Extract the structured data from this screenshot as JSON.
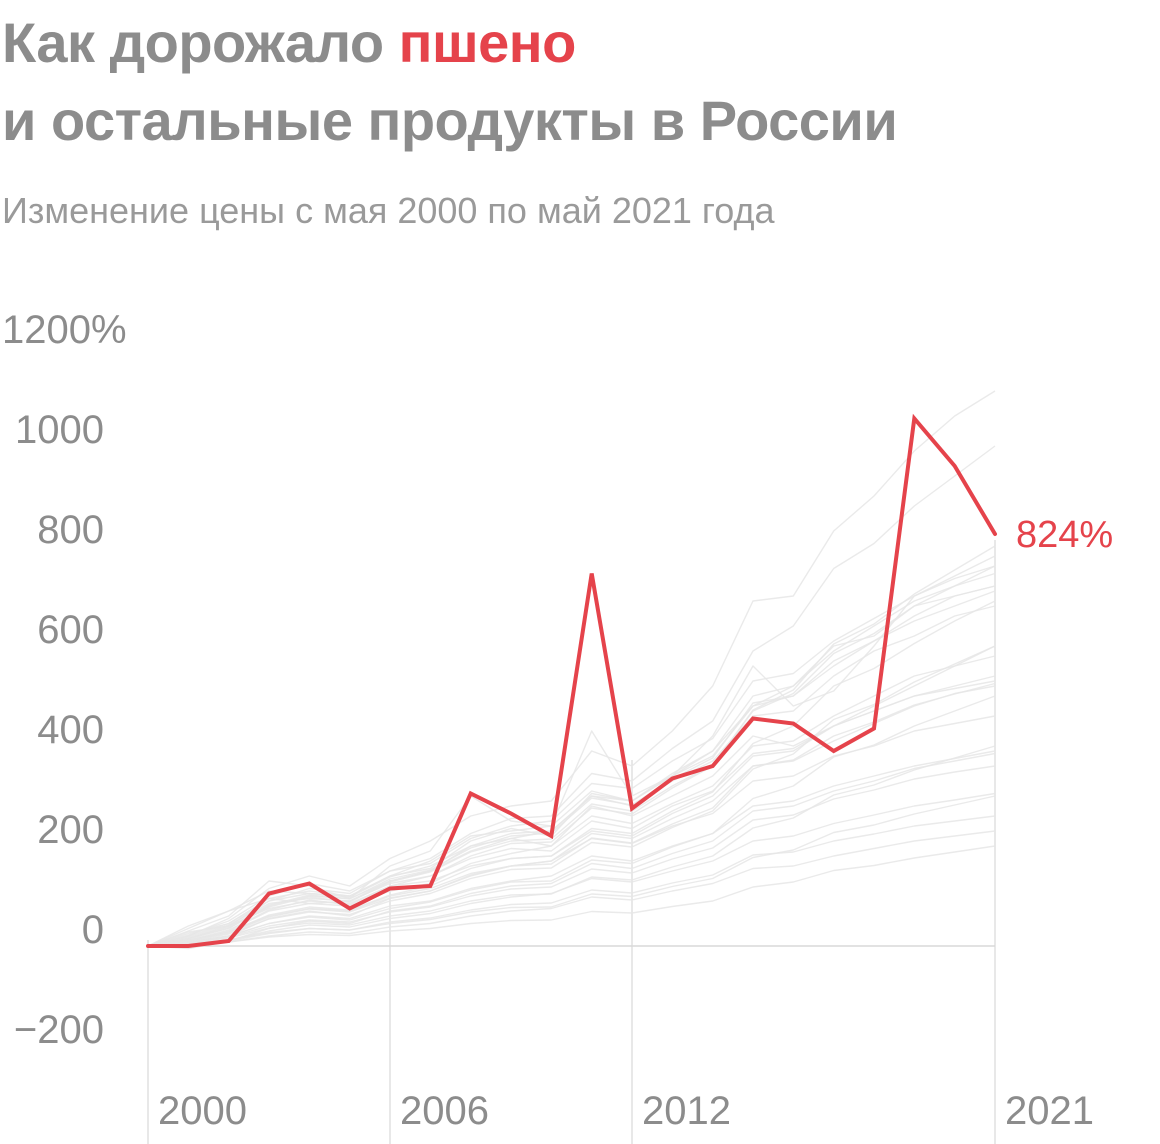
{
  "header": {
    "title_prefix": "Как дорожало ",
    "title_accent": "пшено",
    "title_line2": "и остальные продукты в России",
    "subtitle": "Изменение цены с мая 2000 по май 2021 года"
  },
  "colors": {
    "title": "#8c8c8c",
    "accent": "#e5434b",
    "background_series": "#e6e6e6",
    "axis_text": "#8c8c8c",
    "gridline": "#d9d9d9"
  },
  "chart_data": {
    "type": "line",
    "title": "Как дорожало пшено и остальные продукты в России",
    "subtitle": "Изменение цены с мая 2000 по май 2021 года",
    "xlabel": "",
    "ylabel": "",
    "xlim": [
      2000,
      2021
    ],
    "ylim": [
      -200,
      1200
    ],
    "y_ticks": [
      {
        "value": 1200,
        "label": "1200%"
      },
      {
        "value": 1000,
        "label": "1000"
      },
      {
        "value": 800,
        "label": "800"
      },
      {
        "value": 600,
        "label": "600"
      },
      {
        "value": 400,
        "label": "400"
      },
      {
        "value": 200,
        "label": "200"
      },
      {
        "value": 0,
        "label": "0"
      },
      {
        "value": -200,
        "label": "−200"
      }
    ],
    "x_ticks": [
      {
        "value": 2000,
        "label": "2000"
      },
      {
        "value": 2006,
        "label": "2006"
      },
      {
        "value": 2012,
        "label": "2012"
      },
      {
        "value": 2021,
        "label": "2021"
      }
    ],
    "x": [
      2000,
      2001,
      2002,
      2003,
      2004,
      2005,
      2006,
      2007,
      2008,
      2009,
      2010,
      2011,
      2012,
      2013,
      2014,
      2015,
      2016,
      2017,
      2018,
      2019,
      2020,
      2021
    ],
    "series": [
      {
        "name": "пшено",
        "highlight": true,
        "color": "#e5434b",
        "values": [
          0,
          0,
          10,
          105,
          125,
          75,
          115,
          120,
          305,
          265,
          220,
          745,
          275,
          335,
          360,
          455,
          445,
          390,
          435,
          1055,
          960,
          824
        ],
        "end_label": "824%"
      }
    ],
    "background_series_description": "Остальные продукты",
    "background_series": [
      [
        0,
        15,
        40,
        90,
        115,
        105,
        150,
        175,
        225,
        255,
        260,
        345,
        330,
        395,
        450,
        590,
        640,
        755,
        805,
        880,
        940,
        1000
      ],
      [
        0,
        12,
        32,
        72,
        92,
        82,
        120,
        140,
        180,
        205,
        208,
        276,
        264,
        316,
        360,
        472,
        512,
        604,
        644,
        704,
        752,
        800
      ],
      [
        0,
        10,
        28,
        62,
        78,
        72,
        102,
        120,
        155,
        175,
        180,
        235,
        225,
        270,
        308,
        405,
        440,
        520,
        555,
        605,
        650,
        690
      ],
      [
        0,
        9,
        24,
        54,
        68,
        63,
        90,
        105,
        135,
        153,
        156,
        207,
        198,
        237,
        270,
        354,
        384,
        453,
        483,
        528,
        564,
        600
      ],
      [
        0,
        8,
        20,
        45,
        58,
        52,
        75,
        88,
        112,
        128,
        130,
        172,
        165,
        198,
        225,
        295,
        320,
        378,
        402,
        440,
        470,
        500
      ],
      [
        0,
        6,
        16,
        36,
        46,
        42,
        60,
        70,
        90,
        102,
        104,
        138,
        132,
        158,
        180,
        236,
        256,
        302,
        322,
        352,
        376,
        400
      ],
      [
        0,
        5,
        12,
        27,
        35,
        32,
        45,
        53,
        68,
        77,
        78,
        104,
        99,
        119,
        135,
        177,
        192,
        227,
        242,
        264,
        282,
        300
      ],
      [
        0,
        3,
        8,
        18,
        23,
        21,
        30,
        35,
        45,
        51,
        52,
        69,
        66,
        79,
        90,
        118,
        128,
        151,
        161,
        176,
        188,
        200
      ],
      [
        0,
        30,
        60,
        130,
        120,
        95,
        160,
        190,
        300,
        250,
        240,
        430,
        300,
        340,
        420,
        560,
        480,
        510,
        600,
        700,
        740,
        780
      ],
      [
        0,
        20,
        55,
        115,
        140,
        120,
        175,
        210,
        260,
        280,
        290,
        390,
        360,
        430,
        520,
        690,
        700,
        830,
        900,
        990,
        1060,
        1110
      ],
      [
        0,
        25,
        45,
        95,
        110,
        100,
        140,
        155,
        210,
        235,
        220,
        305,
        290,
        340,
        380,
        480,
        520,
        600,
        620,
        680,
        700,
        720
      ],
      [
        0,
        15,
        35,
        80,
        100,
        95,
        130,
        150,
        190,
        215,
        230,
        300,
        280,
        330,
        370,
        460,
        470,
        540,
        590,
        620,
        660,
        680
      ],
      [
        0,
        10,
        30,
        70,
        85,
        80,
        110,
        125,
        165,
        185,
        200,
        260,
        245,
        285,
        320,
        400,
        410,
        460,
        500,
        540,
        560,
        580
      ],
      [
        0,
        5,
        20,
        55,
        70,
        60,
        95,
        110,
        140,
        160,
        170,
        225,
        215,
        255,
        290,
        360,
        370,
        410,
        445,
        480,
        505,
        520
      ],
      [
        0,
        18,
        42,
        85,
        95,
        90,
        125,
        140,
        175,
        195,
        190,
        250,
        235,
        280,
        310,
        385,
        395,
        440,
        470,
        500,
        520,
        540
      ],
      [
        0,
        12,
        28,
        60,
        75,
        70,
        100,
        115,
        145,
        160,
        170,
        215,
        205,
        240,
        265,
        330,
        340,
        380,
        400,
        430,
        445,
        460
      ],
      [
        0,
        8,
        20,
        45,
        60,
        55,
        80,
        90,
        115,
        130,
        140,
        180,
        170,
        200,
        225,
        280,
        290,
        320,
        340,
        360,
        375,
        390
      ],
      [
        0,
        4,
        12,
        30,
        42,
        38,
        55,
        65,
        85,
        98,
        105,
        135,
        128,
        150,
        170,
        210,
        220,
        245,
        262,
        280,
        292,
        305
      ],
      [
        0,
        2,
        8,
        20,
        28,
        25,
        38,
        45,
        60,
        70,
        75,
        98,
        92,
        110,
        125,
        155,
        160,
        180,
        195,
        210,
        220,
        230
      ],
      [
        0,
        22,
        50,
        100,
        125,
        110,
        150,
        165,
        215,
        240,
        250,
        325,
        315,
        370,
        415,
        530,
        545,
        610,
        655,
        700,
        735,
        760
      ],
      [
        0,
        28,
        40,
        75,
        90,
        85,
        120,
        130,
        160,
        175,
        180,
        230,
        220,
        265,
        300,
        380,
        390,
        440,
        470,
        500,
        515,
        530
      ],
      [
        0,
        35,
        70,
        110,
        105,
        100,
        140,
        170,
        220,
        230,
        240,
        310,
        290,
        340,
        390,
        480,
        500,
        560,
        610,
        660,
        700,
        720
      ],
      [
        0,
        -5,
        10,
        35,
        50,
        45,
        70,
        80,
        105,
        120,
        125,
        165,
        155,
        185,
        210,
        270,
        280,
        310,
        330,
        355,
        370,
        385
      ],
      [
        0,
        14,
        36,
        78,
        98,
        88,
        128,
        148,
        188,
        210,
        214,
        284,
        270,
        320,
        362,
        470,
        505,
        585,
        625,
        680,
        720,
        760
      ],
      [
        0,
        40,
        70,
        95,
        85,
        90,
        130,
        150,
        200,
        215,
        200,
        280,
        260,
        300,
        340,
        420,
        400,
        440,
        480,
        520,
        560,
        600
      ],
      [
        0,
        16,
        38,
        82,
        102,
        94,
        134,
        152,
        196,
        220,
        226,
        296,
        282,
        334,
        376,
        486,
        500,
        570,
        610,
        650,
        680,
        710
      ],
      [
        0,
        11,
        26,
        58,
        74,
        68,
        96,
        110,
        142,
        160,
        164,
        216,
        206,
        244,
        276,
        360,
        372,
        420,
        448,
        482,
        504,
        525
      ],
      [
        0,
        6,
        18,
        40,
        52,
        48,
        68,
        78,
        100,
        114,
        118,
        154,
        146,
        174,
        196,
        252,
        262,
        294,
        312,
        334,
        348,
        360
      ],
      [
        0,
        20,
        45,
        90,
        105,
        98,
        138,
        160,
        200,
        225,
        230,
        300,
        290,
        345,
        390,
        500,
        520,
        590,
        640,
        690,
        720,
        745
      ],
      [
        0,
        3,
        10,
        25,
        35,
        32,
        48,
        56,
        72,
        83,
        86,
        112,
        106,
        126,
        142,
        182,
        188,
        210,
        224,
        240,
        250,
        260
      ]
    ]
  }
}
